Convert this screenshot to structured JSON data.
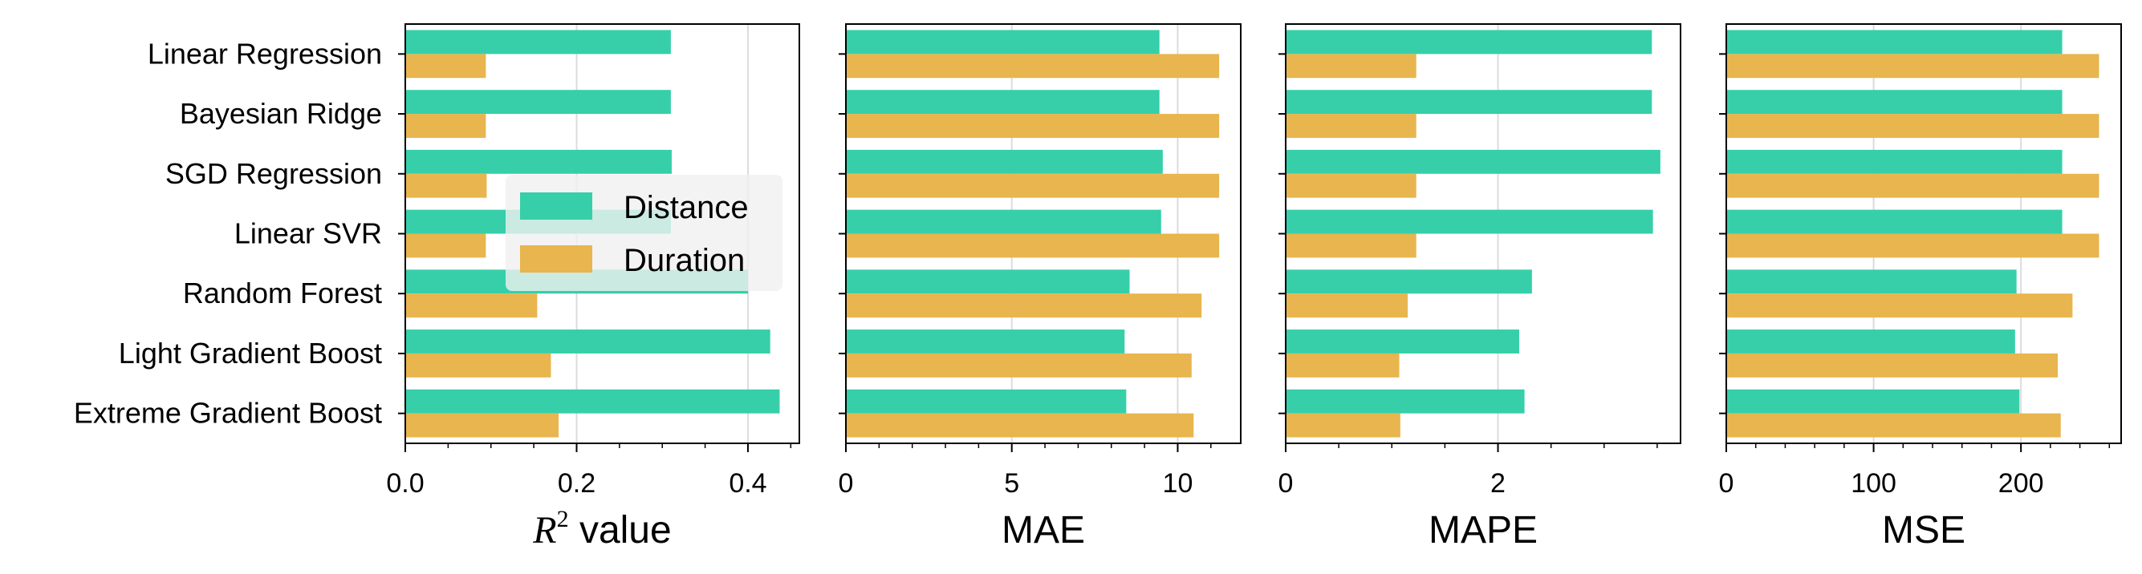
{
  "chart_data": {
    "type": "bar",
    "orientation": "horizontal",
    "shared_categories": true,
    "categories": [
      "Linear Regression",
      "Bayesian Ridge",
      "SGD Regression",
      "Linear SVR",
      "Random Forest",
      "Light Gradient Boost",
      "Extreme Gradient Boost"
    ],
    "colors": {
      "Distance": "#36CFA9",
      "Duration": "#E8B54E"
    },
    "legend": {
      "placement": "center-left of first panel",
      "entries": [
        "Distance",
        "Duration"
      ]
    },
    "grid": "vertical major gridlines",
    "panels": [
      {
        "xlabel_prefix": "R",
        "xlabel_sup": "2",
        "xlabel_suffix": " value",
        "xlim": [
          0,
          0.46
        ],
        "major_ticks": [
          0,
          0.2,
          0.4
        ],
        "tick_labels": [
          "0.0",
          "0.2",
          "0.4"
        ],
        "minor_step": 0.05,
        "series": [
          {
            "name": "Distance",
            "values": [
              0.31,
              0.31,
              0.311,
              0.31,
              0.4,
              0.426,
              0.437
            ]
          },
          {
            "name": "Duration",
            "values": [
              0.094,
              0.094,
              0.095,
              0.094,
              0.154,
              0.17,
              0.179
            ]
          }
        ]
      },
      {
        "xlabel": "MAE",
        "xlim": [
          0,
          11.9
        ],
        "major_ticks": [
          0,
          5,
          10
        ],
        "tick_labels": [
          "0",
          "5",
          "10"
        ],
        "minor_step": 1,
        "series": [
          {
            "name": "Distance",
            "values": [
              9.45,
              9.45,
              9.55,
              9.5,
              8.55,
              8.4,
              8.45
            ]
          },
          {
            "name": "Duration",
            "values": [
              11.25,
              11.25,
              11.25,
              11.25,
              10.72,
              10.42,
              10.48
            ]
          }
        ]
      },
      {
        "xlabel": "MAPE",
        "xlim": [
          0,
          3.72
        ],
        "major_ticks": [
          0,
          2
        ],
        "tick_labels": [
          "0",
          "2"
        ],
        "minor_step": 0.5,
        "series": [
          {
            "name": "Distance",
            "values": [
              3.45,
              3.45,
              3.53,
              3.46,
              2.32,
              2.2,
              2.25
            ]
          },
          {
            "name": "Duration",
            "values": [
              1.23,
              1.23,
              1.23,
              1.23,
              1.15,
              1.07,
              1.08
            ]
          }
        ]
      },
      {
        "xlabel": "MSE",
        "xlim": [
          0,
          268
        ],
        "major_ticks": [
          0,
          100,
          200
        ],
        "tick_labels": [
          "0",
          "100",
          "200"
        ],
        "minor_step": 20,
        "series": [
          {
            "name": "Distance",
            "values": [
              228,
              228,
              228,
              228,
              197,
              196,
              199
            ]
          },
          {
            "name": "Duration",
            "values": [
              253,
              253,
              253,
              253,
              235,
              225,
              227
            ]
          }
        ]
      }
    ]
  }
}
